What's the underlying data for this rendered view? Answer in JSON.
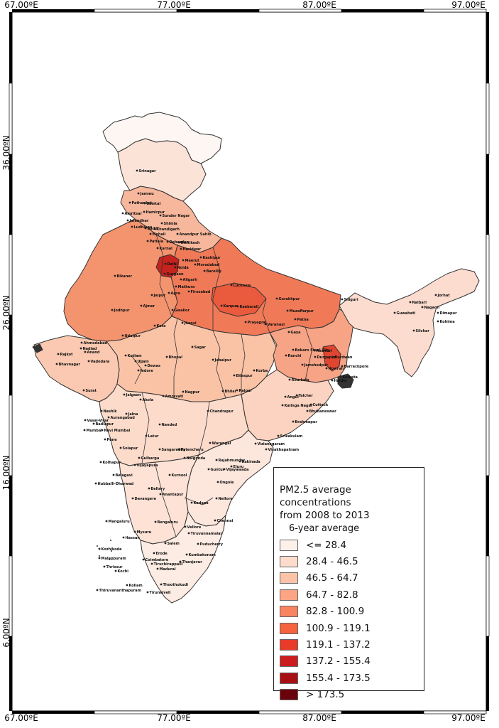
{
  "map": {
    "longitude_ticks": [
      "67.00ºE",
      "77.00ºE",
      "87.00ºE",
      "97.00ºE"
    ],
    "latitude_ticks": [
      "36.00ºN",
      "26.00ºN",
      "16.00ºN",
      "6.00ºN"
    ]
  },
  "legend": {
    "title_line1": "PM2.5 average concentrations",
    "title_line2": "from 2008 to 2013",
    "subtitle": "6-year average",
    "classes": [
      {
        "label": "<= 28.4",
        "color": "#fdf0ea"
      },
      {
        "label": "28.4 - 46.5",
        "color": "#fddccb"
      },
      {
        "label": "46.5 - 64.7",
        "color": "#fcc3a8"
      },
      {
        "label": "64.7 - 82.8",
        "color": "#fca484"
      },
      {
        "label": "82.8 - 100.9",
        "color": "#f98461"
      },
      {
        "label": "100.9 - 119.1",
        "color": "#f5633f"
      },
      {
        "label": "119.1 - 137.2",
        "color": "#e93b2a"
      },
      {
        "label": "137.2 - 155.4",
        "color": "#cb1d1e"
      },
      {
        "label": "155.4 - 173.5",
        "color": "#a80f15"
      },
      {
        "label": "> 173.5",
        "color": "#6a020c"
      }
    ]
  },
  "cities": [
    "Srinagar",
    "Jammu",
    "Pathankot",
    "Samtal",
    "Hamirpur",
    "Sunder Nagar",
    "Amritsar",
    "Jalandhar",
    "Shimla",
    "Ludhiana",
    "Chandigarh",
    "Baddi",
    "Mohali",
    "Anandpur Sahib",
    "Patiala",
    "Dehradun",
    "Rishikesh",
    "Karnal",
    "Haridwar",
    "Kashipur",
    "Meerut",
    "Moradabad",
    "Delhi",
    "Noida",
    "Gurgaon",
    "Bareilly",
    "Aligarh",
    "Mathura",
    "Agra",
    "Bikaner",
    "Firozabad",
    "Lucknow",
    "Gorakhpur",
    "Siliguri",
    "Nalbari",
    "Jaipur",
    "Ajmer",
    "Kanpur",
    "Raebareli",
    "Guwahati",
    "Jorhat",
    "Nagaon",
    "Jodhpur",
    "Gwalior",
    "Muzaffarpur",
    "Patna",
    "Dimapur",
    "Kohima",
    "Prayagraj",
    "Varanasi",
    "Kota",
    "Jhansi",
    "Silchar",
    "Udaipur",
    "Gaya",
    "Sagar",
    "Bokaro Steel City",
    "Ranchi",
    "Asansol",
    "Durgapur",
    "Burdwan",
    "Kolkata",
    "Haldia",
    "Howrah",
    "Barrackpore",
    "Kutlam",
    "Ujjain",
    "Bhopal",
    "Jabalpur",
    "Ahmedabad",
    "Nadiad",
    "Anand",
    "Dewas",
    "Indore",
    "Rajkot",
    "Jamshedpur",
    "Bhavnagar",
    "Vadodara",
    "Rourkela",
    "Bilaspur",
    "Korba",
    "Raipur",
    "Surat",
    "Jalgaon",
    "Akola",
    "Amravati",
    "Nagpur",
    "Bhilai",
    "Angul",
    "Talcher",
    "Cuttack",
    "Bhubaneswar",
    "Kalinga Nagar",
    "Nashik",
    "Chandrapur",
    "Vasai-Virar",
    "Jalna",
    "Aurangabad",
    "Badlapur",
    "Mumbai",
    "Navi Mumbai",
    "Pune",
    "Nanded",
    "Brahmapur",
    "Srikakulam",
    "Vizianagaram",
    "Latur",
    "Warangal",
    "Visakhapatnam",
    "Solapur",
    "Sangareddy",
    "Patencheru",
    "Gulbarga",
    "Nalgonda",
    "Rajahmundry",
    "Kakinada",
    "Eluru",
    "Kolhapur",
    "Vijayapura",
    "Belagavi",
    "Kurnool",
    "Guntur",
    "Vijayawada",
    "Ongole",
    "Hubballi-Dharwad",
    "Bellary",
    "Anantapur",
    "Nellore",
    "Davangere",
    "Kadapa",
    "Mangaluru",
    "Bengaluru",
    "Chennai",
    "Mysuru",
    "Tiruvannamalai",
    "Vellore",
    "Hassan",
    "Salem",
    "Puducherry",
    "Kozhikode",
    "Erode",
    "Kumbakonam",
    "Malappuram",
    "Coimbatore",
    "Tiruchirappalli",
    "Thanjavur",
    "Thrissur",
    "Kochi",
    "Madurai",
    "Kollam",
    "Thoothukudi",
    "Thiruvananthapuram",
    "Tirunelveli"
  ]
}
